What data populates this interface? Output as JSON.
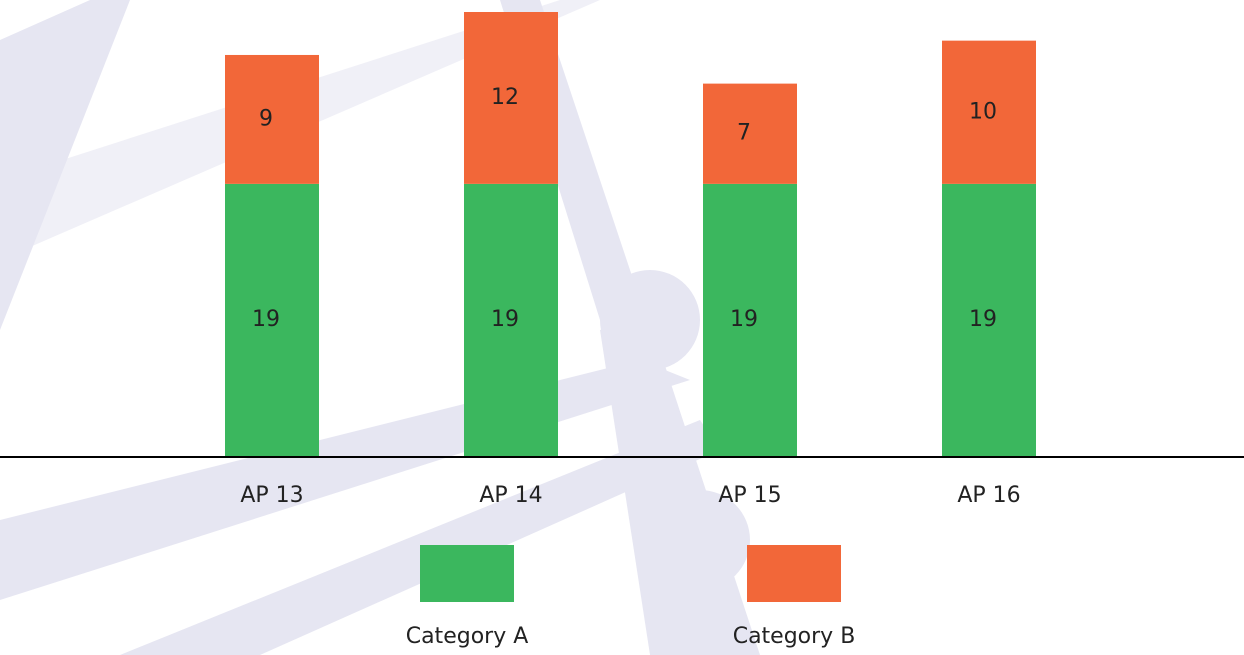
{
  "chart_data": {
    "type": "stacked_bar",
    "categories": [
      "AP 13",
      "AP 14",
      "AP 15",
      "AP 16"
    ],
    "series": [
      {
        "name": "Category A",
        "color": "#3bb75e",
        "values": [
          19,
          19,
          19,
          19
        ]
      },
      {
        "name": "Category B",
        "color": "#f26739",
        "values": [
          9,
          12,
          7,
          10
        ]
      }
    ]
  }
}
